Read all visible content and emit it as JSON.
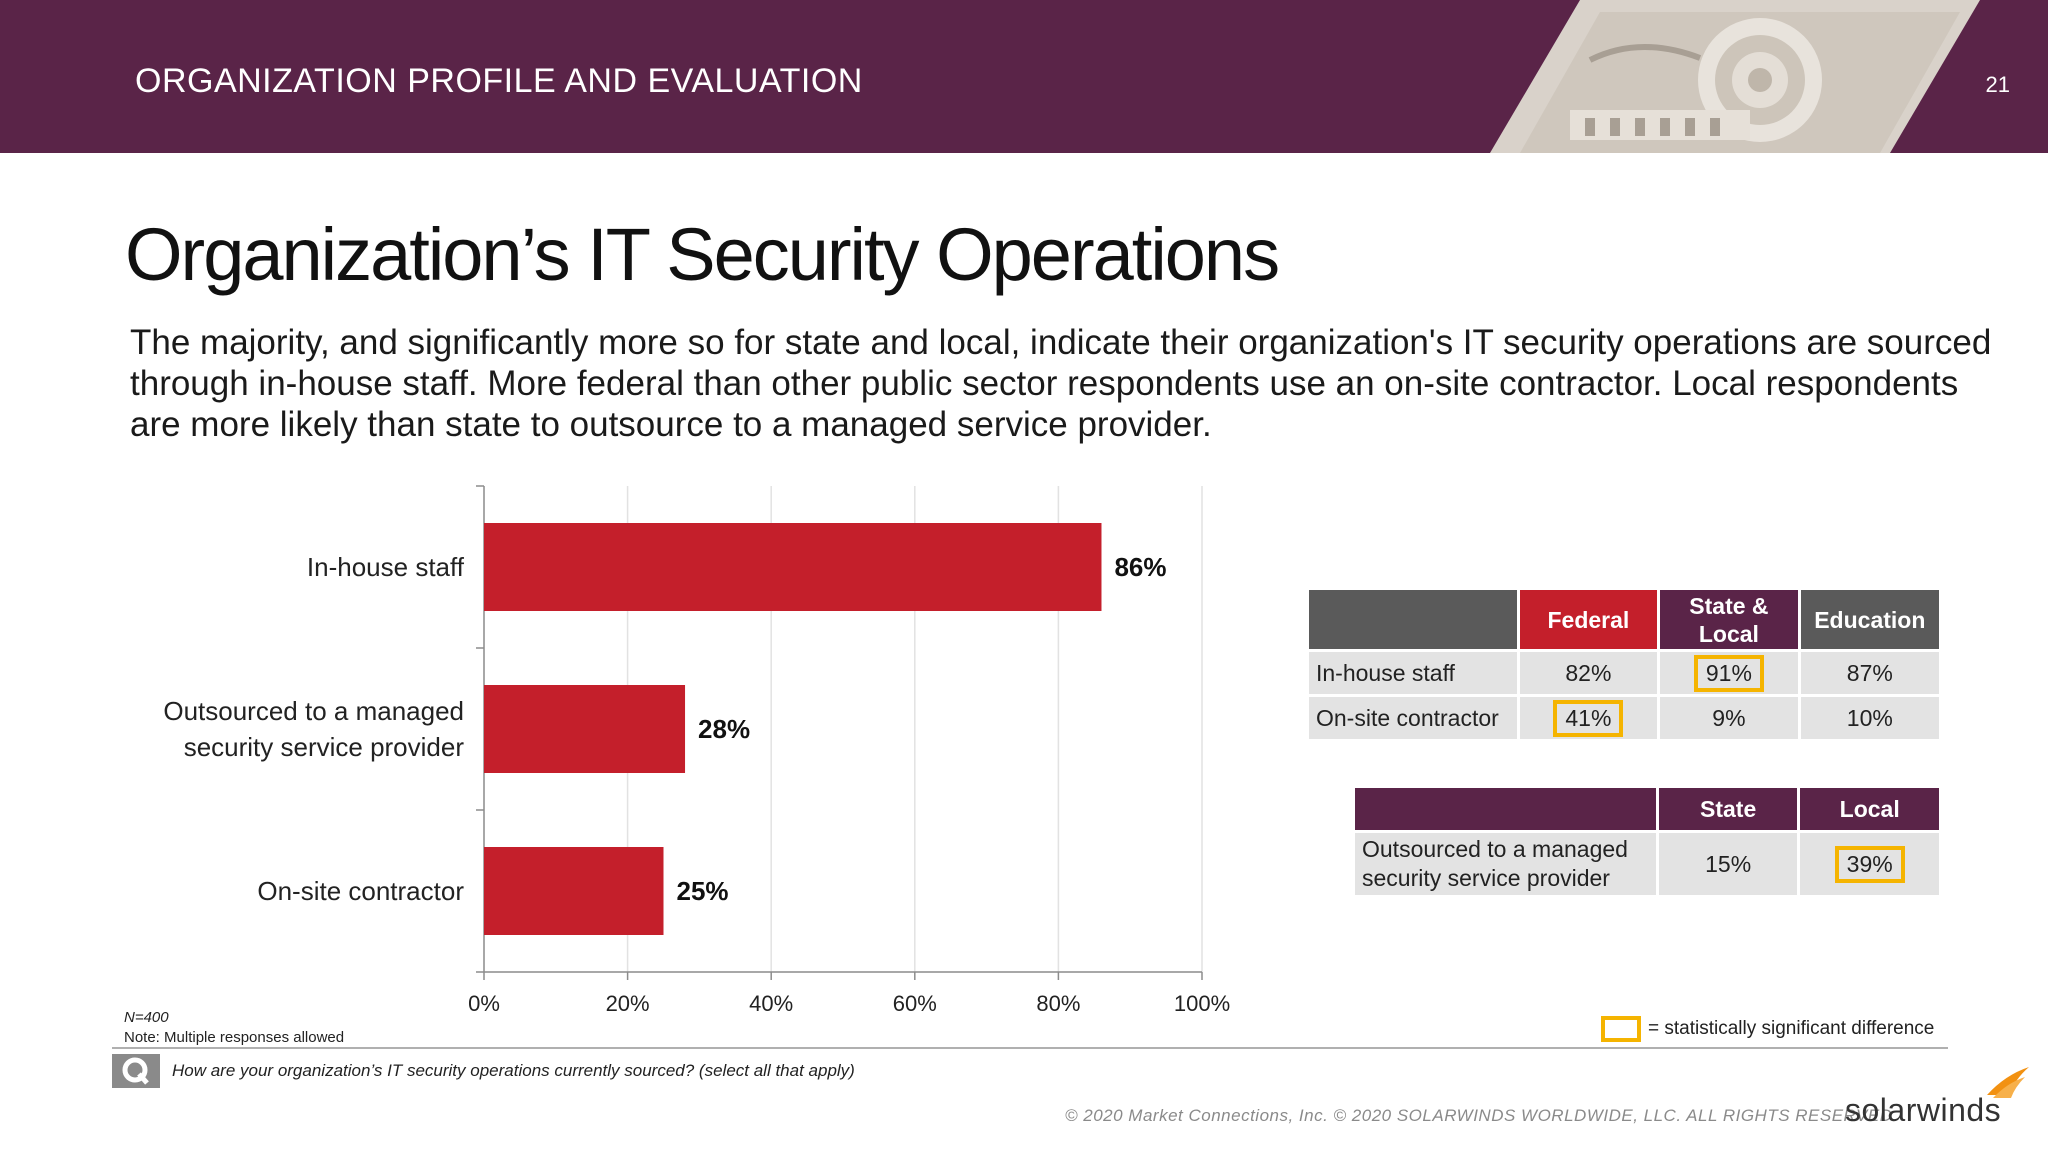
{
  "header": {
    "section_title": "ORGANIZATION PROFILE AND EVALUATION",
    "page_number": "21"
  },
  "slide": {
    "title": "Organization’s IT Security Operations",
    "summary": "The majority, and significantly more so for state and local, indicate their organization's IT security operations are sourced through in-house staff. More federal than other public sector respondents use an on-site contractor. Local respondents are more likely than state to outsource to a managed service provider."
  },
  "chart_data": {
    "type": "bar",
    "orientation": "horizontal",
    "categories": [
      [
        "In-house staff"
      ],
      [
        "Outsourced to a managed",
        "security service provider"
      ],
      [
        "On-site contractor"
      ]
    ],
    "values": [
      86,
      28,
      25
    ],
    "value_labels": [
      "86%",
      "28%",
      "25%"
    ],
    "xlim": [
      0,
      100
    ],
    "xticks": [
      0,
      20,
      40,
      60,
      80,
      100
    ],
    "xtick_labels": [
      "0%",
      "20%",
      "40%",
      "60%",
      "80%",
      "100%"
    ],
    "grid": true,
    "bar_color": "#c41f2b"
  },
  "table1": {
    "headers": [
      "Federal",
      "State & Local",
      "Education"
    ],
    "header_colors": [
      "#c41f2b",
      "#5a2448",
      "#5a5a5a"
    ],
    "rows": [
      {
        "label": "In-house staff",
        "cells": [
          "82%",
          "91%",
          "87%"
        ],
        "significant": [
          false,
          true,
          false
        ]
      },
      {
        "label": "On-site contractor",
        "cells": [
          "41%",
          "9%",
          "10%"
        ],
        "significant": [
          true,
          false,
          false
        ]
      }
    ]
  },
  "table2": {
    "headers": [
      "State",
      "Local"
    ],
    "rows": [
      {
        "label_lines": [
          "Outsourced to a managed",
          "security service provider"
        ],
        "cells": [
          "15%",
          "39%"
        ],
        "significant": [
          false,
          true
        ]
      }
    ]
  },
  "colors": {
    "brand_purple": "#5a2448",
    "bar_red": "#c41f2b",
    "highlight_yellow": "#f5b400",
    "dark_gray": "#5a5a5a"
  },
  "legend": {
    "significance_text": "= statistically significant difference"
  },
  "notes": {
    "sample": "N=400",
    "responses": "Note: Multiple responses allowed"
  },
  "question": "How are your organization’s IT security operations currently sourced? (select all that apply)",
  "footer": {
    "copyright": "© 2020 Market Connections, Inc. © 2020 SOLARWINDS WORLDWIDE, LLC. ALL RIGHTS RESERVED",
    "logo": "solarwinds"
  }
}
